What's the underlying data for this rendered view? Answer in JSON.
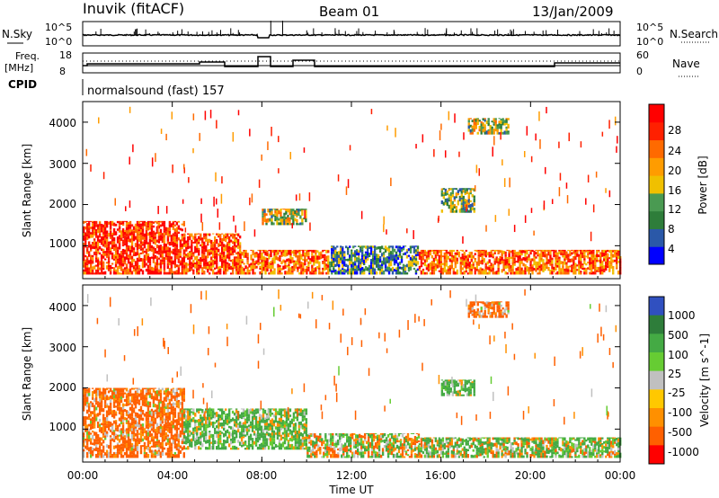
{
  "header": {
    "station": "Inuvik (fitACF)",
    "beam": "Beam 01",
    "date": "13/Jan/2009"
  },
  "top_panels": {
    "nsky_label": "N.Sky",
    "nsky_ticks": [
      "10^5",
      "10^0"
    ],
    "nsearch_label": "N.Search",
    "nsearch_ticks": [
      "10^5",
      "10^0"
    ],
    "freq_label": "Freq.",
    "freq_unit": "[MHz]",
    "freq_ticks": [
      "18",
      "8"
    ],
    "nave_label": "Nave",
    "nave_ticks": [
      "60",
      "0"
    ],
    "cpid_label": "CPID",
    "cpid_value": "normalsound (fast) 157"
  },
  "time_axis": {
    "title": "Time UT",
    "ticks": [
      "00:00",
      "04:00",
      "08:00",
      "12:00",
      "16:00",
      "20:00",
      "00:00"
    ]
  },
  "colors": {
    "power_scale": [
      "#0000ff",
      "#2a58a8",
      "#2e7d3a",
      "#4a9a52",
      "#f0c000",
      "#ff9c00",
      "#ff6a00",
      "#ff2000",
      "#ff0000"
    ],
    "velocity_scale": [
      "#3050c0",
      "#2e7d3a",
      "#44aa44",
      "#66cc33",
      "#c0c0c0",
      "#ffc800",
      "#ff9000",
      "#ff6000",
      "#ff0000"
    ]
  },
  "chart_data": [
    {
      "type": "heatmap",
      "panel": "power",
      "ylabel": "Slant Range [km]",
      "yticks": [
        "1000",
        "2000",
        "3000",
        "4000"
      ],
      "ylim": [
        200,
        4500
      ],
      "xlim": [
        0,
        24
      ],
      "colorbar_label": "Power [dB]",
      "colorbar_ticks": [
        "4",
        "8",
        "12",
        "16",
        "20",
        "24",
        "28"
      ],
      "clim": [
        0,
        30
      ],
      "regions": [
        {
          "t": [
            0,
            4.5
          ],
          "r": [
            300,
            1600
          ],
          "value": 26
        },
        {
          "t": [
            4.5,
            7
          ],
          "r": [
            300,
            1300
          ],
          "value": 24
        },
        {
          "t": [
            7,
            11
          ],
          "r": [
            300,
            900
          ],
          "value": 22
        },
        {
          "t": [
            11,
            15
          ],
          "r": [
            300,
            1000
          ],
          "value": 8
        },
        {
          "t": [
            15,
            24
          ],
          "r": [
            300,
            900
          ],
          "value": 22
        },
        {
          "t": [
            16,
            17.5
          ],
          "r": [
            1800,
            2400
          ],
          "value": 12
        },
        {
          "t": [
            17.2,
            19
          ],
          "r": [
            3700,
            4100
          ],
          "value": 14
        },
        {
          "t": [
            8,
            10
          ],
          "r": [
            1500,
            1900
          ],
          "value": 14
        }
      ]
    },
    {
      "type": "heatmap",
      "panel": "velocity",
      "ylabel": "Slant Range [km]",
      "yticks": [
        "1000",
        "2000",
        "3000",
        "4000"
      ],
      "ylim": [
        200,
        4500
      ],
      "xlim": [
        0,
        24
      ],
      "colorbar_label": "Velocity [m s^-1]",
      "colorbar_ticks": [
        "1000",
        "500",
        "100",
        "25",
        "-25",
        "-100",
        "-500",
        "-1000"
      ],
      "regions": [
        {
          "t": [
            0,
            4.5
          ],
          "r": [
            300,
            2000
          ],
          "value": -200
        },
        {
          "t": [
            4.5,
            10
          ],
          "r": [
            500,
            1500
          ],
          "value": 150
        },
        {
          "t": [
            10,
            15
          ],
          "r": [
            300,
            900
          ],
          "value": 0
        },
        {
          "t": [
            15,
            24
          ],
          "r": [
            300,
            800
          ],
          "value": 80
        },
        {
          "t": [
            16,
            17.5
          ],
          "r": [
            1800,
            2200
          ],
          "value": 150
        },
        {
          "t": [
            17.2,
            19
          ],
          "r": [
            3700,
            4100
          ],
          "value": -200
        }
      ]
    }
  ]
}
